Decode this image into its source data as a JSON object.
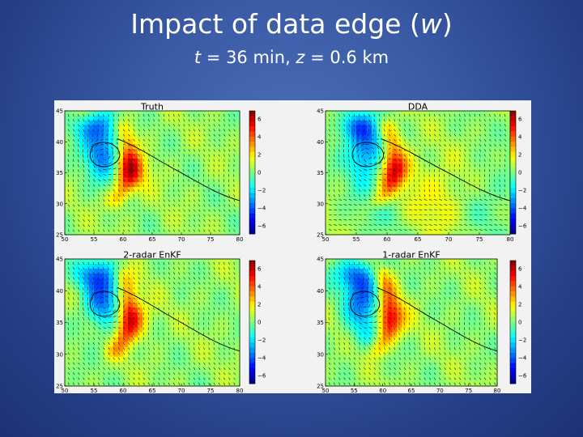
{
  "slide": {
    "title_pre": "Impact of data edge (",
    "title_var": "w",
    "title_post": ")",
    "sub_t": "t",
    "sub_mid": " = 36 min, ",
    "sub_z": "z",
    "sub_post": " = 0.6 km"
  },
  "colors": {
    "background": "#3a5aa5",
    "text": "#ffffff",
    "colormap": [
      "#00007f",
      "#0000ff",
      "#007fff",
      "#00ffff",
      "#7fff7f",
      "#ffff00",
      "#ff7f00",
      "#ff0000",
      "#7f0000"
    ]
  },
  "chart_data": [
    {
      "type": "heatmap",
      "title": "Truth",
      "xlim": [
        50,
        80
      ],
      "ylim": [
        25,
        45
      ],
      "x_ticks": [
        "50",
        "55",
        "60",
        "65",
        "70",
        "75",
        "80"
      ],
      "y_ticks": [
        "25",
        "30",
        "35",
        "40",
        "45"
      ],
      "colorbar_range": [
        -6,
        6
      ],
      "colorbar_ticks": [
        "6",
        "4",
        "2",
        "0",
        "−2",
        "−4",
        "−6"
      ],
      "vector_overlay": true
    },
    {
      "type": "heatmap",
      "title": "DDA",
      "xlim": [
        50,
        80
      ],
      "ylim": [
        25,
        45
      ],
      "x_ticks": [
        "50",
        "55",
        "60",
        "65",
        "70",
        "75",
        "80"
      ],
      "y_ticks": [
        "25",
        "30",
        "35",
        "40",
        "45"
      ],
      "colorbar_range": [
        -6,
        6
      ],
      "colorbar_ticks": [
        "6",
        "4",
        "2",
        "0",
        "−2",
        "−4",
        "−6"
      ],
      "vector_overlay": true
    },
    {
      "type": "heatmap",
      "title": "2-radar EnKF",
      "xlim": [
        50,
        80
      ],
      "ylim": [
        25,
        45
      ],
      "x_ticks": [
        "50",
        "55",
        "60",
        "65",
        "70",
        "75",
        "80"
      ],
      "y_ticks": [
        "25",
        "30",
        "35",
        "40",
        "45"
      ],
      "colorbar_range": [
        -6,
        6
      ],
      "colorbar_ticks": [
        "6",
        "4",
        "2",
        "0",
        "−2",
        "−4",
        "−6"
      ],
      "vector_overlay": true
    },
    {
      "type": "heatmap",
      "title": "1-radar EnKF",
      "xlim": [
        50,
        80
      ],
      "ylim": [
        25,
        45
      ],
      "x_ticks": [
        "50",
        "55",
        "60",
        "65",
        "70",
        "75",
        "80"
      ],
      "y_ticks": [
        "25",
        "30",
        "35",
        "40",
        "45"
      ],
      "colorbar_range": [
        -6,
        6
      ],
      "colorbar_ticks": [
        "6",
        "4",
        "2",
        "0",
        "−2",
        "−4",
        "−6"
      ],
      "vector_overlay": true
    }
  ]
}
